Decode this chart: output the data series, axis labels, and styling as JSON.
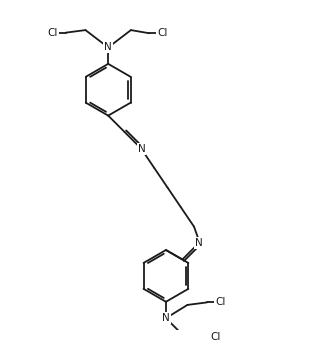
{
  "figsize": [
    3.3,
    3.42
  ],
  "dpi": 100,
  "bg_color": "#ffffff",
  "line_color": "#1a1a1a",
  "line_width": 1.3,
  "text_color": "#1a1a1a",
  "font_size": 7.5,
  "xlim": [
    0,
    10
  ],
  "ylim": [
    0,
    10.4
  ]
}
